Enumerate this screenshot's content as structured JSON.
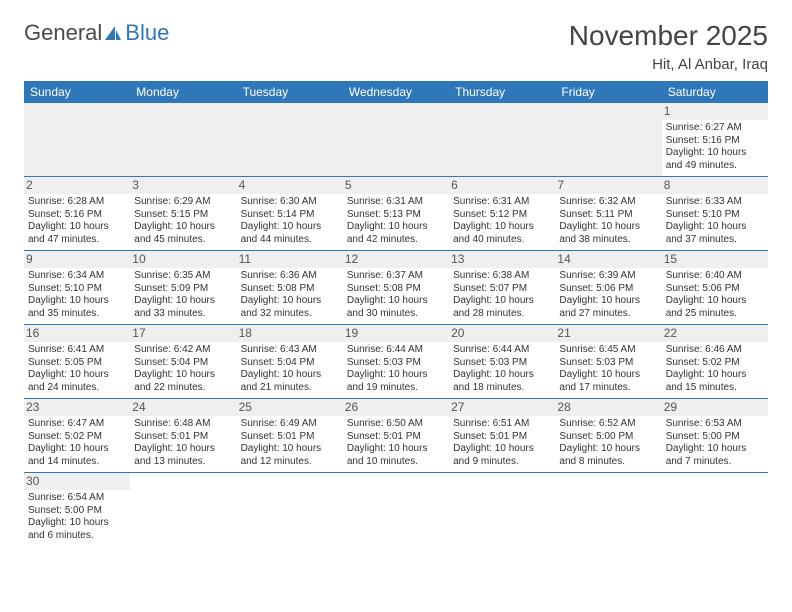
{
  "brand": {
    "part1": "General",
    "part2": "Blue"
  },
  "title": "November 2025",
  "location": "Hit, Al Anbar, Iraq",
  "colors": {
    "header_bg": "#2e77b8",
    "header_text": "#ffffff",
    "daynum_bg": "#efefef",
    "row_divider": "#2e77b8",
    "text": "#333333",
    "title_text": "#444444"
  },
  "fonts": {
    "title_size_pt": 21,
    "location_size_pt": 11,
    "weekday_size_pt": 9,
    "daynum_size_pt": 9,
    "body_size_pt": 7.5
  },
  "weekdays": [
    "Sunday",
    "Monday",
    "Tuesday",
    "Wednesday",
    "Thursday",
    "Friday",
    "Saturday"
  ],
  "leading_blanks": 6,
  "days": [
    {
      "n": "1",
      "sunrise": "Sunrise: 6:27 AM",
      "sunset": "Sunset: 5:16 PM",
      "day1": "Daylight: 10 hours",
      "day2": "and 49 minutes."
    },
    {
      "n": "2",
      "sunrise": "Sunrise: 6:28 AM",
      "sunset": "Sunset: 5:16 PM",
      "day1": "Daylight: 10 hours",
      "day2": "and 47 minutes."
    },
    {
      "n": "3",
      "sunrise": "Sunrise: 6:29 AM",
      "sunset": "Sunset: 5:15 PM",
      "day1": "Daylight: 10 hours",
      "day2": "and 45 minutes."
    },
    {
      "n": "4",
      "sunrise": "Sunrise: 6:30 AM",
      "sunset": "Sunset: 5:14 PM",
      "day1": "Daylight: 10 hours",
      "day2": "and 44 minutes."
    },
    {
      "n": "5",
      "sunrise": "Sunrise: 6:31 AM",
      "sunset": "Sunset: 5:13 PM",
      "day1": "Daylight: 10 hours",
      "day2": "and 42 minutes."
    },
    {
      "n": "6",
      "sunrise": "Sunrise: 6:31 AM",
      "sunset": "Sunset: 5:12 PM",
      "day1": "Daylight: 10 hours",
      "day2": "and 40 minutes."
    },
    {
      "n": "7",
      "sunrise": "Sunrise: 6:32 AM",
      "sunset": "Sunset: 5:11 PM",
      "day1": "Daylight: 10 hours",
      "day2": "and 38 minutes."
    },
    {
      "n": "8",
      "sunrise": "Sunrise: 6:33 AM",
      "sunset": "Sunset: 5:10 PM",
      "day1": "Daylight: 10 hours",
      "day2": "and 37 minutes."
    },
    {
      "n": "9",
      "sunrise": "Sunrise: 6:34 AM",
      "sunset": "Sunset: 5:10 PM",
      "day1": "Daylight: 10 hours",
      "day2": "and 35 minutes."
    },
    {
      "n": "10",
      "sunrise": "Sunrise: 6:35 AM",
      "sunset": "Sunset: 5:09 PM",
      "day1": "Daylight: 10 hours",
      "day2": "and 33 minutes."
    },
    {
      "n": "11",
      "sunrise": "Sunrise: 6:36 AM",
      "sunset": "Sunset: 5:08 PM",
      "day1": "Daylight: 10 hours",
      "day2": "and 32 minutes."
    },
    {
      "n": "12",
      "sunrise": "Sunrise: 6:37 AM",
      "sunset": "Sunset: 5:08 PM",
      "day1": "Daylight: 10 hours",
      "day2": "and 30 minutes."
    },
    {
      "n": "13",
      "sunrise": "Sunrise: 6:38 AM",
      "sunset": "Sunset: 5:07 PM",
      "day1": "Daylight: 10 hours",
      "day2": "and 28 minutes."
    },
    {
      "n": "14",
      "sunrise": "Sunrise: 6:39 AM",
      "sunset": "Sunset: 5:06 PM",
      "day1": "Daylight: 10 hours",
      "day2": "and 27 minutes."
    },
    {
      "n": "15",
      "sunrise": "Sunrise: 6:40 AM",
      "sunset": "Sunset: 5:06 PM",
      "day1": "Daylight: 10 hours",
      "day2": "and 25 minutes."
    },
    {
      "n": "16",
      "sunrise": "Sunrise: 6:41 AM",
      "sunset": "Sunset: 5:05 PM",
      "day1": "Daylight: 10 hours",
      "day2": "and 24 minutes."
    },
    {
      "n": "17",
      "sunrise": "Sunrise: 6:42 AM",
      "sunset": "Sunset: 5:04 PM",
      "day1": "Daylight: 10 hours",
      "day2": "and 22 minutes."
    },
    {
      "n": "18",
      "sunrise": "Sunrise: 6:43 AM",
      "sunset": "Sunset: 5:04 PM",
      "day1": "Daylight: 10 hours",
      "day2": "and 21 minutes."
    },
    {
      "n": "19",
      "sunrise": "Sunrise: 6:44 AM",
      "sunset": "Sunset: 5:03 PM",
      "day1": "Daylight: 10 hours",
      "day2": "and 19 minutes."
    },
    {
      "n": "20",
      "sunrise": "Sunrise: 6:44 AM",
      "sunset": "Sunset: 5:03 PM",
      "day1": "Daylight: 10 hours",
      "day2": "and 18 minutes."
    },
    {
      "n": "21",
      "sunrise": "Sunrise: 6:45 AM",
      "sunset": "Sunset: 5:03 PM",
      "day1": "Daylight: 10 hours",
      "day2": "and 17 minutes."
    },
    {
      "n": "22",
      "sunrise": "Sunrise: 6:46 AM",
      "sunset": "Sunset: 5:02 PM",
      "day1": "Daylight: 10 hours",
      "day2": "and 15 minutes."
    },
    {
      "n": "23",
      "sunrise": "Sunrise: 6:47 AM",
      "sunset": "Sunset: 5:02 PM",
      "day1": "Daylight: 10 hours",
      "day2": "and 14 minutes."
    },
    {
      "n": "24",
      "sunrise": "Sunrise: 6:48 AM",
      "sunset": "Sunset: 5:01 PM",
      "day1": "Daylight: 10 hours",
      "day2": "and 13 minutes."
    },
    {
      "n": "25",
      "sunrise": "Sunrise: 6:49 AM",
      "sunset": "Sunset: 5:01 PM",
      "day1": "Daylight: 10 hours",
      "day2": "and 12 minutes."
    },
    {
      "n": "26",
      "sunrise": "Sunrise: 6:50 AM",
      "sunset": "Sunset: 5:01 PM",
      "day1": "Daylight: 10 hours",
      "day2": "and 10 minutes."
    },
    {
      "n": "27",
      "sunrise": "Sunrise: 6:51 AM",
      "sunset": "Sunset: 5:01 PM",
      "day1": "Daylight: 10 hours",
      "day2": "and 9 minutes."
    },
    {
      "n": "28",
      "sunrise": "Sunrise: 6:52 AM",
      "sunset": "Sunset: 5:00 PM",
      "day1": "Daylight: 10 hours",
      "day2": "and 8 minutes."
    },
    {
      "n": "29",
      "sunrise": "Sunrise: 6:53 AM",
      "sunset": "Sunset: 5:00 PM",
      "day1": "Daylight: 10 hours",
      "day2": "and 7 minutes."
    },
    {
      "n": "30",
      "sunrise": "Sunrise: 6:54 AM",
      "sunset": "Sunset: 5:00 PM",
      "day1": "Daylight: 10 hours",
      "day2": "and 6 minutes."
    }
  ]
}
